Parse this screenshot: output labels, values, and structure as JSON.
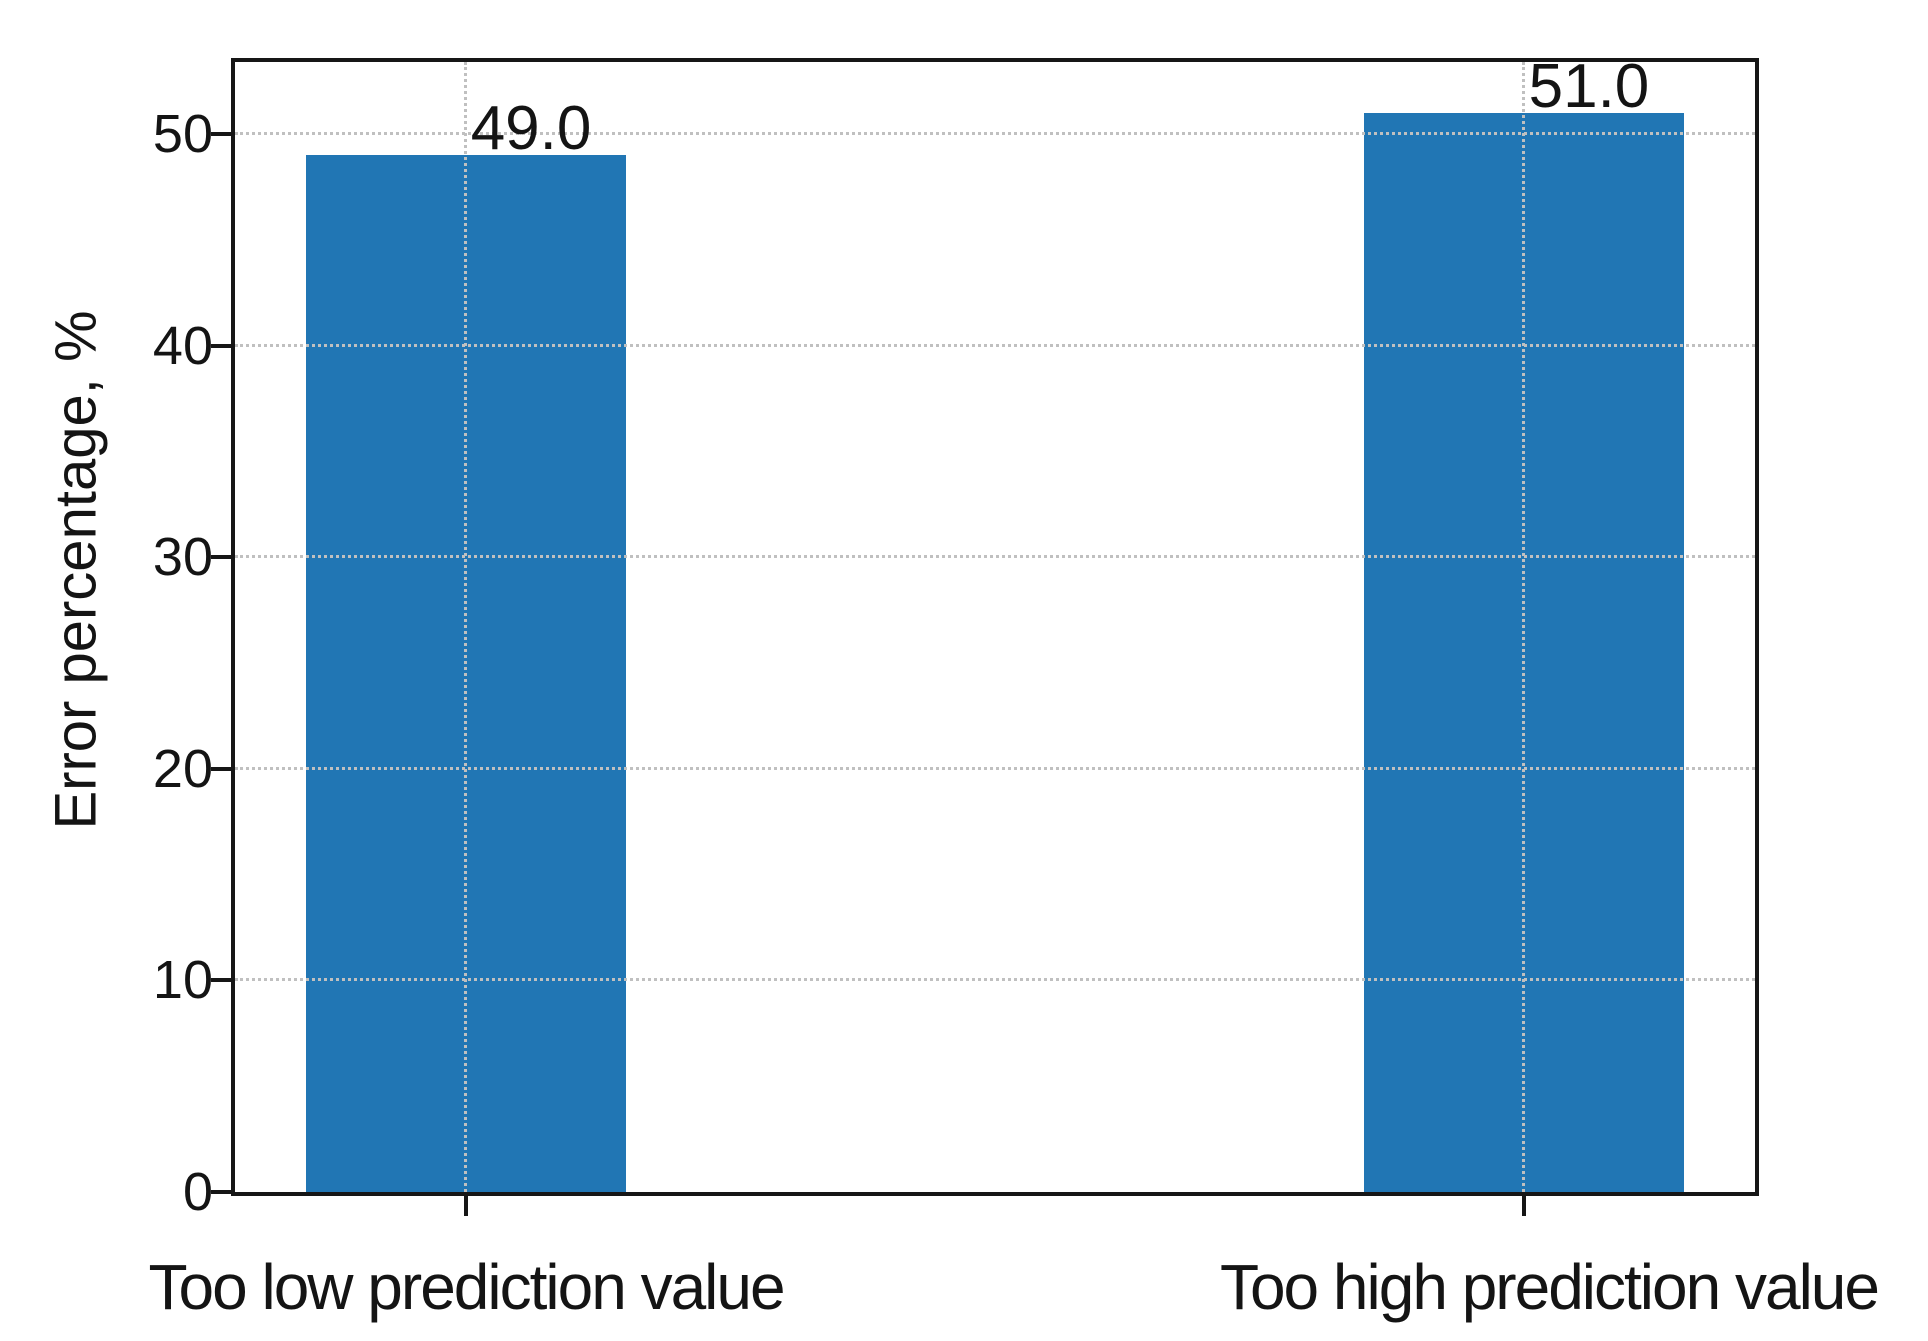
{
  "chart_data": {
    "type": "bar",
    "title": "",
    "xlabel": "",
    "ylabel": "Error percentage, %",
    "categories": [
      "Too low prediction value",
      "Too high prediction value"
    ],
    "values": [
      49.0,
      51.0
    ],
    "value_labels": [
      "49.0",
      "51.0"
    ],
    "ytick_values": [
      0,
      10,
      20,
      30,
      40,
      50
    ],
    "ytick_labels": [
      "0",
      "10",
      "20",
      "30",
      "40",
      "50"
    ],
    "ylim": [
      0,
      53.4
    ],
    "legend": "none",
    "grid": "dotted gridlines: horizontal at each y tick, vertical at each bar center, drawn above bars",
    "colors": {
      "bar": "#2176b4",
      "grid": "#c0c0c0",
      "axis": "#161616",
      "text": "#141414",
      "background": "#ffffff"
    }
  }
}
